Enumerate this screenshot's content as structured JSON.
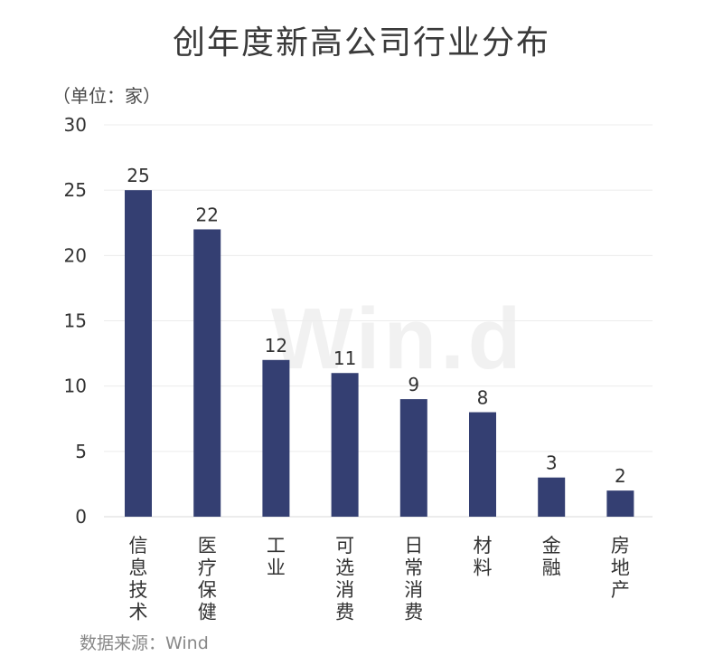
{
  "title": "创年度新高公司行业分布",
  "unit_label": "（单位：家）",
  "source": "数据来源：Wind",
  "watermark": "Win.d",
  "chart_data": {
    "type": "bar",
    "title": "创年度新高公司行业分布",
    "ylabel": "（单位：家）",
    "xlabel": "",
    "categories": [
      "信息技术",
      "医疗保健",
      "工业",
      "可选消费",
      "日常消费",
      "材料",
      "金融",
      "房地产"
    ],
    "values": [
      25,
      22,
      12,
      11,
      9,
      8,
      3,
      2
    ],
    "ylim": [
      0,
      30
    ],
    "yticks": [
      0,
      5,
      10,
      15,
      20,
      25,
      30
    ],
    "bar_color": "#343f72",
    "grid": true,
    "legend": "none"
  }
}
